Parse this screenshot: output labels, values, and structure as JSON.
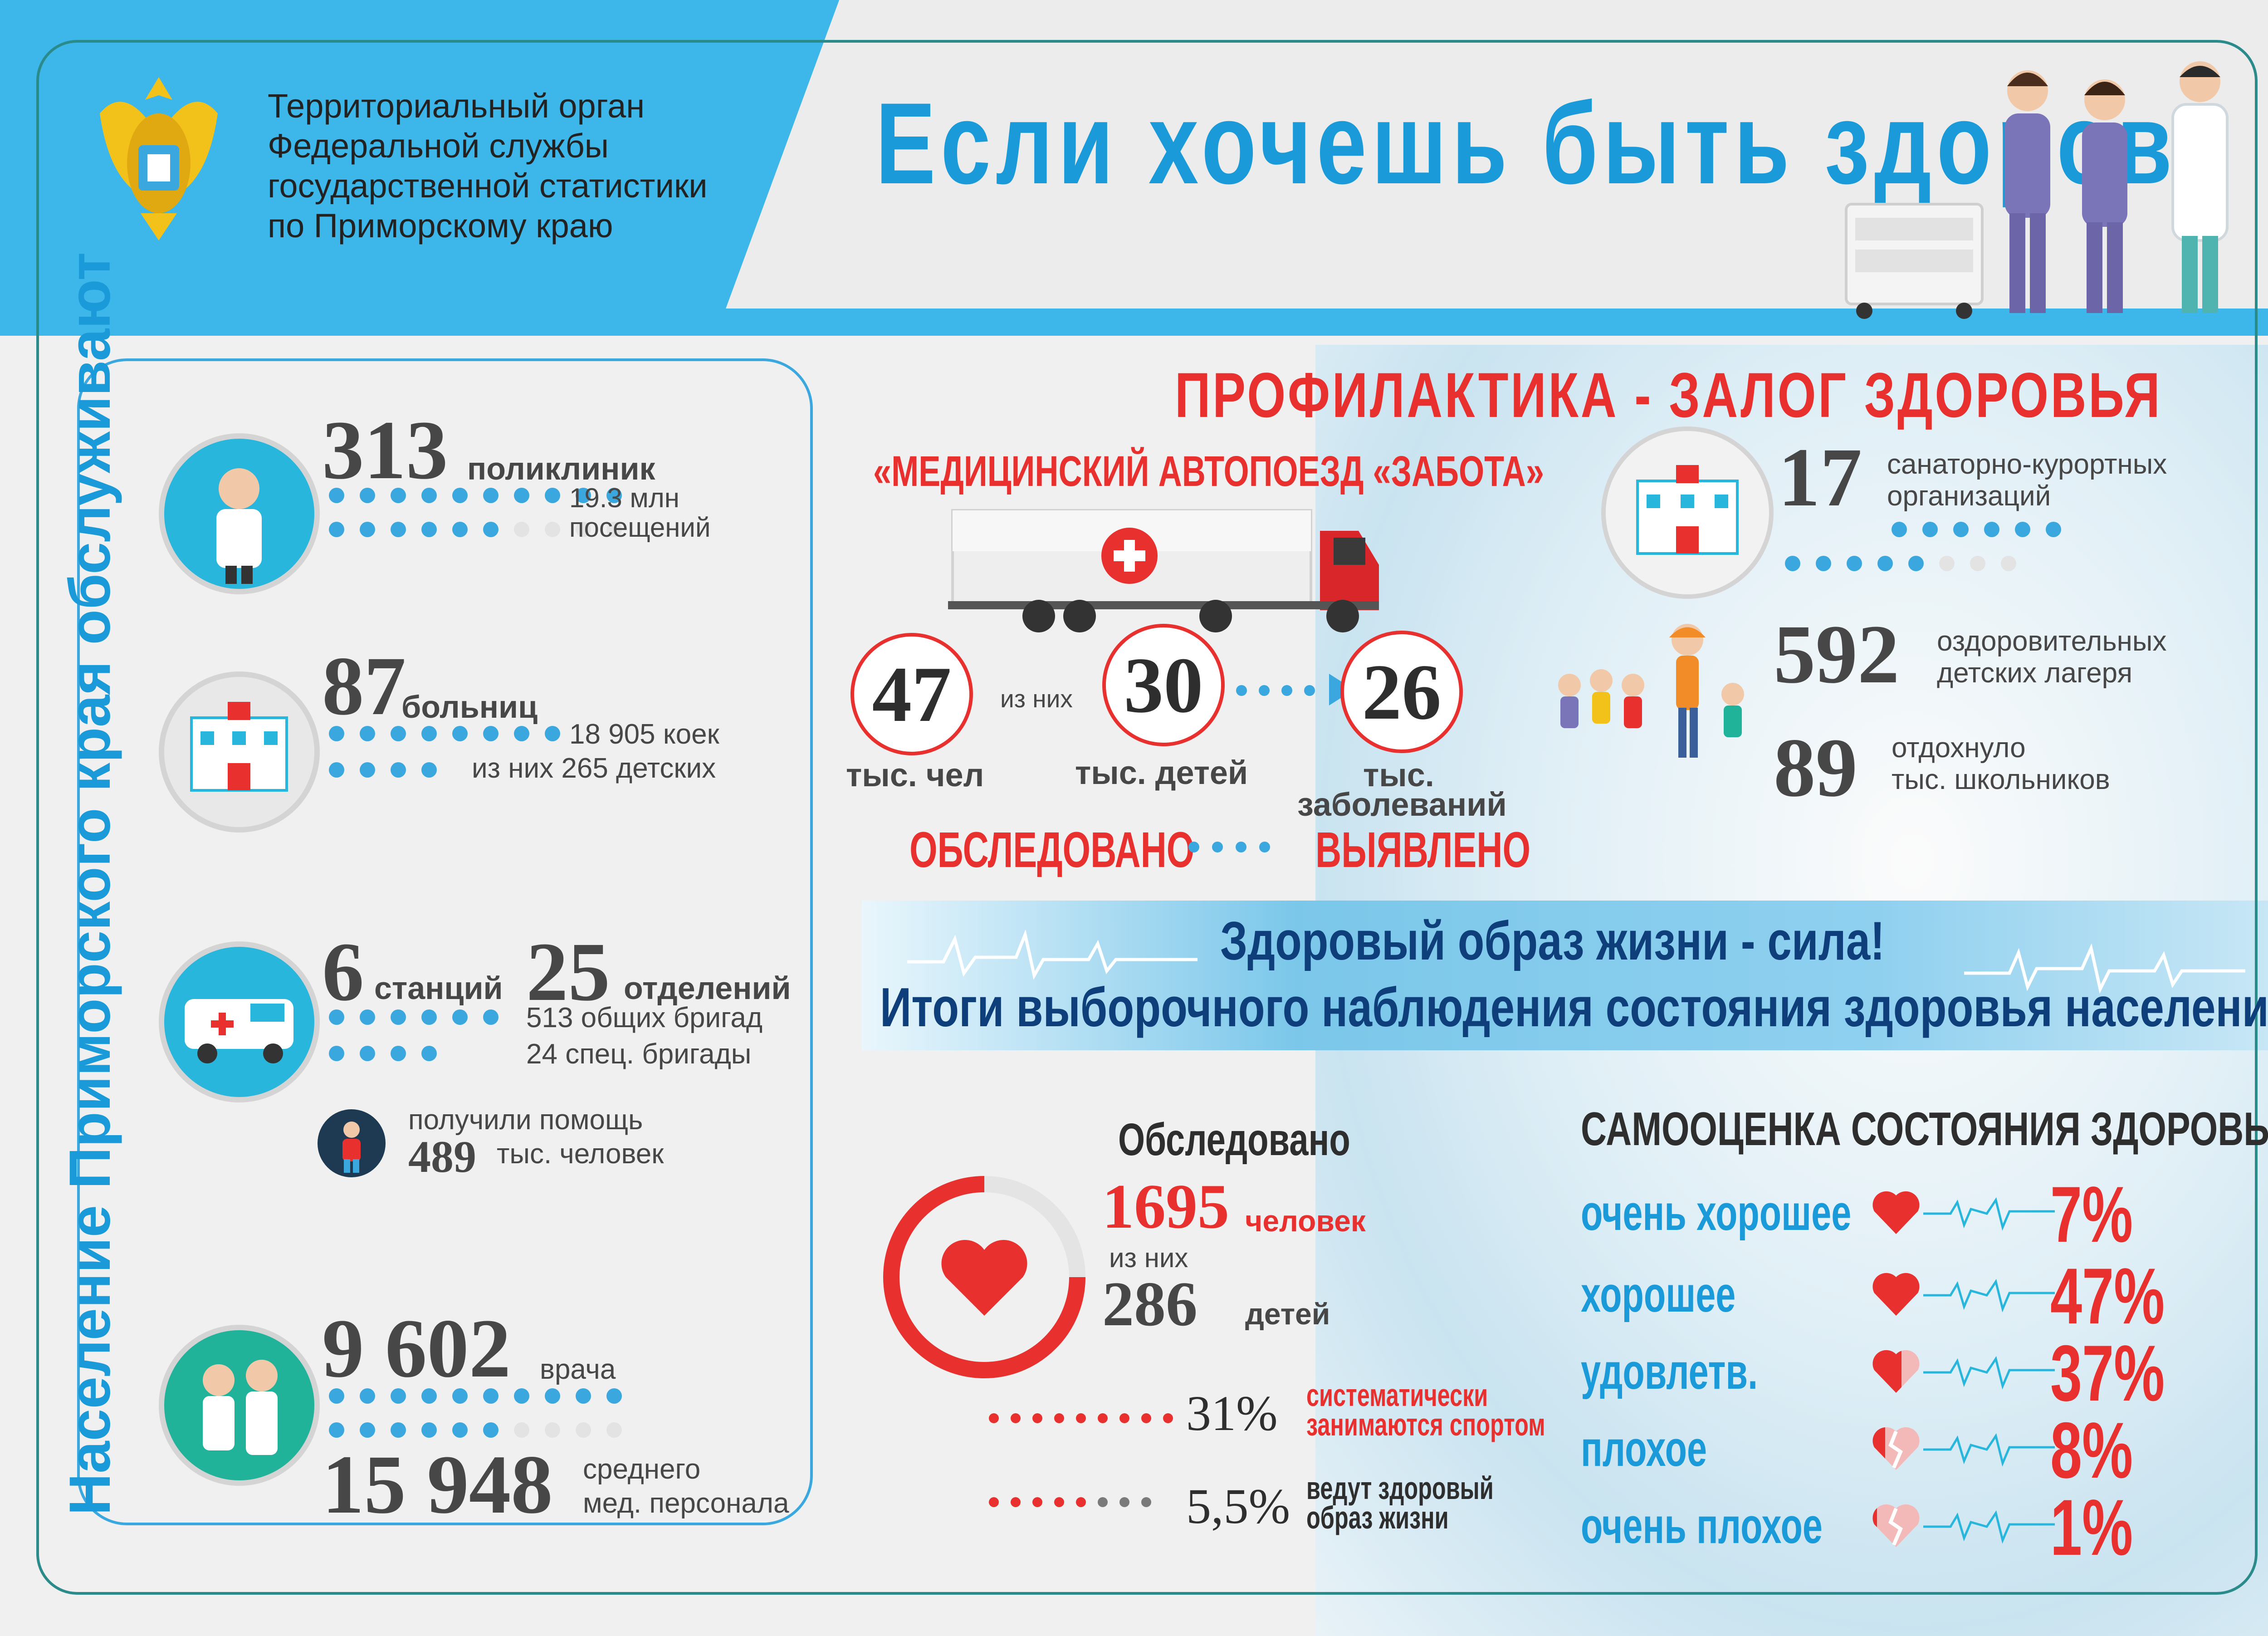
{
  "header": {
    "org_line1": "Территориальный орган",
    "org_line2": "Федеральной службы",
    "org_line3": "государственной статистики",
    "org_line4": "по Приморскому краю",
    "title": "Если хочешь быть здоров!"
  },
  "left_panel": {
    "vertical_title": "Население Приморского края обслуживают",
    "clinics": {
      "number": "313",
      "unit": "поликлиник",
      "sub1": "19.3 млн",
      "sub2": "посещений"
    },
    "hospitals": {
      "number": "87",
      "unit": "больниц",
      "sub1": "18 905 коек",
      "sub2": "из них 265 детских"
    },
    "ambulance": {
      "num_a": "6",
      "unit_a": "станций",
      "num_b": "25",
      "unit_b": "отделений",
      "sub1": "513 общих бригад",
      "sub2": "24 спец. бригады"
    },
    "help": {
      "line1": "получили помощь",
      "number": "489",
      "unit": "тыс. человек"
    },
    "staff": {
      "doctors": "9 602",
      "doctors_unit": "врача",
      "medium": "15 948",
      "medium_unit1": "среднего",
      "medium_unit2": "мед. персонала"
    }
  },
  "prevention": {
    "heading": "ПРОФИЛАКТИКА - ЗАЛОГ ЗДОРОВЬЯ",
    "train_title": "«МЕДИЦИНСКИЙ АВТОПОЕЗД «ЗАБОТА»",
    "examined_num": "47",
    "examined_unit": "тыс. чел",
    "of_them": "из них",
    "children_num": "30",
    "children_unit": "тыс. детей",
    "diseases_num": "26",
    "diseases_unit1": "тыс.",
    "diseases_unit2": "заболеваний",
    "examined_label": "ОБСЛЕДОВАНО",
    "found_label": "ВЫЯВЛЕНО",
    "sanatoria_num": "17",
    "sanatoria_label1": "санаторно-курортных",
    "sanatoria_label2": "организаций",
    "camps_num": "592",
    "camps_label1": "оздоровительных",
    "camps_label2": "детских лагеря",
    "rested_num": "89",
    "rested_label1": "отдохнуло",
    "rested_label2": "тыс. школьников"
  },
  "banner": {
    "line1": "Здоровый образ жизни - сила!",
    "line2": "Итоги выборочного наблюдения состояния здоровья населения"
  },
  "survey": {
    "heading": "Обследовано",
    "people_num": "1695",
    "people_unit": "человек",
    "of_them": "из них",
    "kids_num": "286",
    "kids_unit": "детей",
    "sport_pct": "31%",
    "sport_label1": "систематически",
    "sport_label2": "занимаются спортом",
    "healthy_pct": "5,5%",
    "healthy_label1": "ведут здоровый",
    "healthy_label2": "образ жизни",
    "self_heading": "САМООЦЕНКА СОСТОЯНИЯ ЗДОРОВЬЯ",
    "ratings": [
      {
        "label": "очень хорошее",
        "value": "7%",
        "fill": 1.0
      },
      {
        "label": "хорошее",
        "value": "47%",
        "fill": 1.0
      },
      {
        "label": "удовлетв.",
        "value": "37%",
        "fill": 0.6
      },
      {
        "label": "плохое",
        "value": "8%",
        "fill": 0.3
      },
      {
        "label": "очень плохое",
        "value": "1%",
        "fill": 0.15
      }
    ]
  },
  "colors": {
    "blue": "#3aa8df",
    "red": "#e8302f",
    "dark": "#474747",
    "navy": "#0e3f7a"
  }
}
